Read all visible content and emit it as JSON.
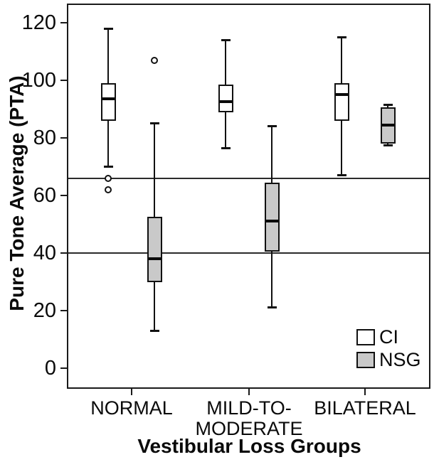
{
  "chart_data": {
    "type": "boxplot",
    "title": "",
    "xlabel": "Vestibular Loss Groups",
    "ylabel": "Pure Tone Average (PTA)",
    "y_ticks": [
      0,
      20,
      40,
      60,
      80,
      100,
      120
    ],
    "ylim": [
      -7,
      127
    ],
    "grid": "off",
    "reference_lines_y": [
      66,
      40
    ],
    "categories": [
      "NORMAL",
      "MILD-TO-MODERATE",
      "BILATERAL"
    ],
    "legend_position": "bottom-right",
    "series": [
      {
        "name": "CI",
        "fill": "#ffffff",
        "boxes": [
          {
            "whisker_low": 70,
            "q1": 86,
            "median": 93.5,
            "q3": 99,
            "whisker_high": 118,
            "outliers": [
              66,
              62
            ]
          },
          {
            "whisker_low": 76.5,
            "q1": 89,
            "median": 92.5,
            "q3": 98.5,
            "whisker_high": 114,
            "outliers": []
          },
          {
            "whisker_low": 67,
            "q1": 86,
            "median": 95,
            "q3": 99,
            "whisker_high": 115,
            "outliers": []
          }
        ]
      },
      {
        "name": "NSG",
        "fill": "#c9c9c9",
        "boxes": [
          {
            "whisker_low": 13,
            "q1": 30,
            "median": 38,
            "q3": 52.5,
            "whisker_high": 85,
            "outliers": [
              107
            ]
          },
          {
            "whisker_low": 21,
            "q1": 40.5,
            "median": 51,
            "q3": 64.5,
            "whisker_high": 84,
            "outliers": []
          },
          {
            "whisker_low": 77.5,
            "q1": 78,
            "median": 84.5,
            "q3": 90.5,
            "whisker_high": 91.5,
            "outliers": []
          }
        ]
      }
    ]
  }
}
